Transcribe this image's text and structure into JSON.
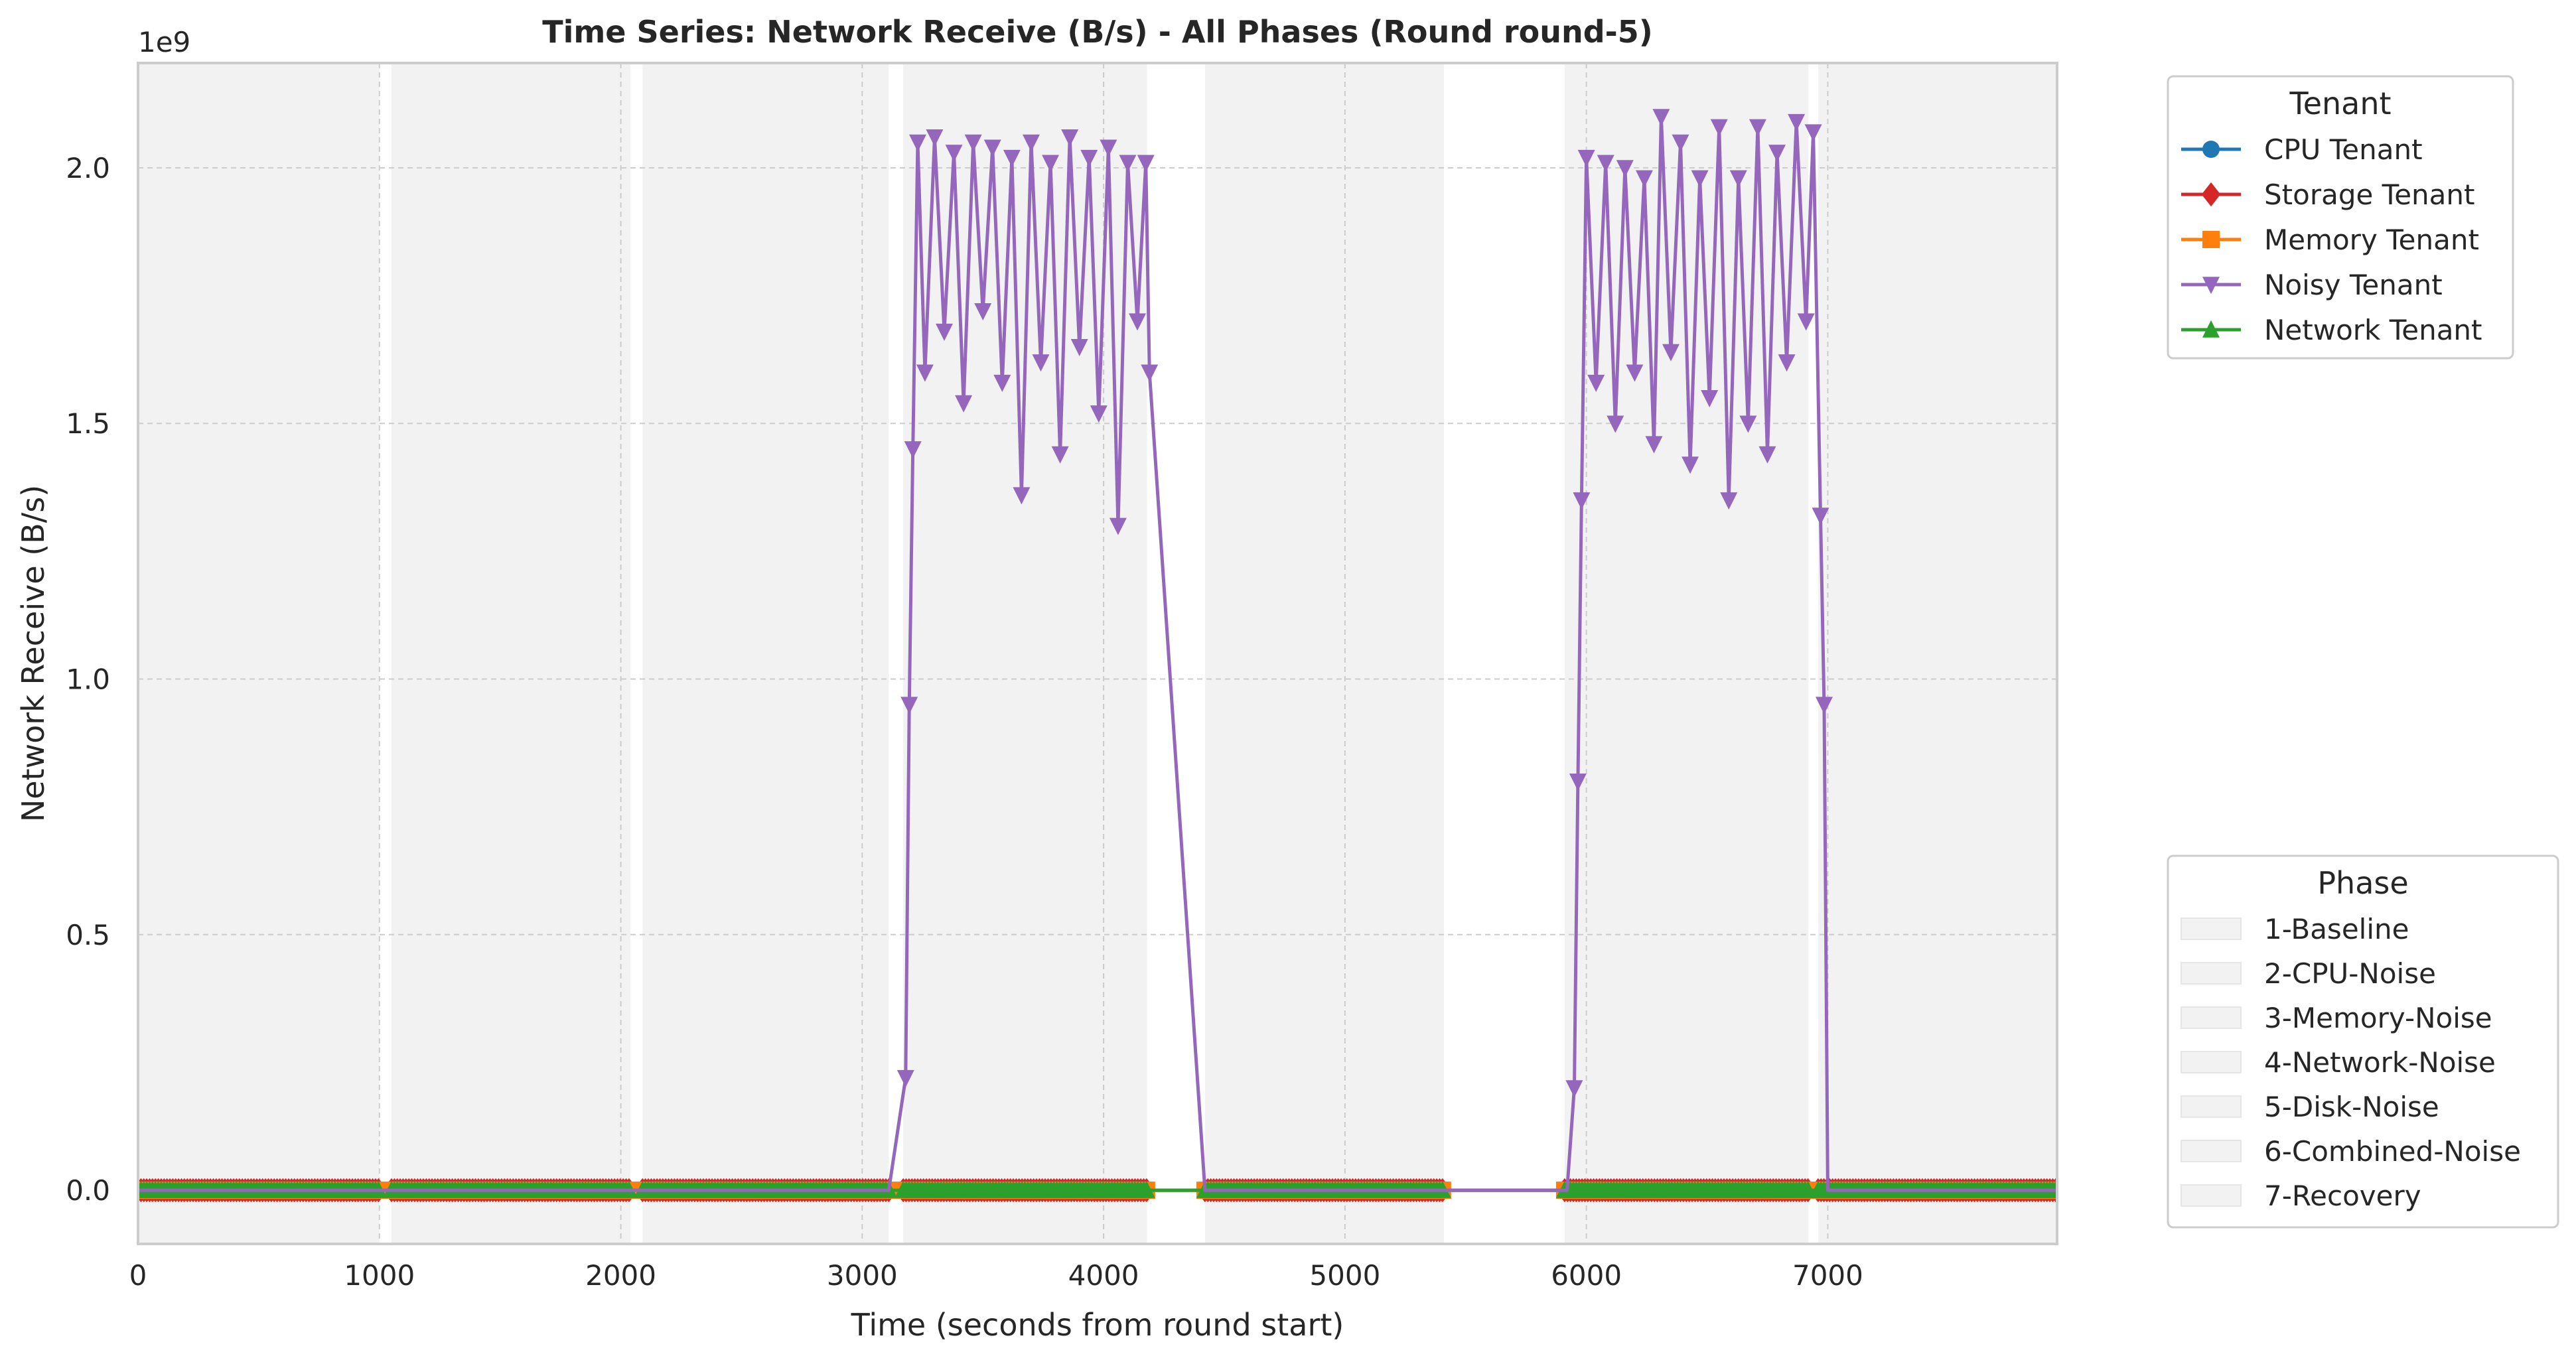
{
  "chart_data": {
    "type": "line",
    "title": "Time Series: Network Receive (B/s) - All Phases (Round round-5)",
    "xlabel": "Time (seconds from round start)",
    "ylabel": "Network Receive (B/s)",
    "y_scale_label": "1e9",
    "xlim": [
      0,
      7950
    ],
    "ylim": [
      -0.105,
      2.205
    ],
    "x_ticks": [
      0,
      1000,
      2000,
      3000,
      4000,
      5000,
      6000,
      7000
    ],
    "x_tick_labels": [
      "0",
      "1000",
      "2000",
      "3000",
      "4000",
      "5000",
      "6000",
      "7000"
    ],
    "y_ticks": [
      0.0,
      0.5,
      1.0,
      1.5,
      2.0
    ],
    "y_tick_labels": [
      "0.0",
      "0.5",
      "1.0",
      "1.5",
      "2.0"
    ],
    "grid": true,
    "phases": [
      {
        "name": "1-Baseline",
        "start": 0,
        "end": 1000
      },
      {
        "name": "2-CPU-Noise",
        "start": 1050,
        "end": 2040
      },
      {
        "name": "3-Memory-Noise",
        "start": 2090,
        "end": 3110
      },
      {
        "name": "4-Network-Noise",
        "start": 3170,
        "end": 4180
      },
      {
        "name": "5-Disk-Noise",
        "start": 4420,
        "end": 5410
      },
      {
        "name": "6-Combined-Noise",
        "start": 5910,
        "end": 6920
      },
      {
        "name": "7-Recovery",
        "start": 6960,
        "end": 7950
      }
    ],
    "tenant_legend_title": "Tenant",
    "phase_legend_title": "Phase",
    "legend_position": "right (outside plot)",
    "series": [
      {
        "name": "CPU Tenant",
        "color": "#1f77b4",
        "marker": "circle",
        "points": "~0 B/s during every phase, 0 between phases"
      },
      {
        "name": "Storage Tenant",
        "color": "#d62728",
        "marker": "diamond",
        "points": "~0 B/s during every phase, 0 between phases"
      },
      {
        "name": "Memory Tenant",
        "color": "#ff7f0e",
        "marker": "square",
        "points": "~0 B/s during every phase, 0 between phases"
      },
      {
        "name": "Noisy Tenant",
        "color": "#9467bd",
        "marker": "triangle-down",
        "points": [
          [
            3110,
            0.0
          ],
          [
            3180,
            0.22
          ],
          [
            3195,
            0.95
          ],
          [
            3210,
            1.45
          ],
          [
            3230,
            2.05
          ],
          [
            3260,
            1.6
          ],
          [
            3300,
            2.06
          ],
          [
            3340,
            1.68
          ],
          [
            3380,
            2.03
          ],
          [
            3420,
            1.54
          ],
          [
            3460,
            2.05
          ],
          [
            3500,
            1.72
          ],
          [
            3540,
            2.04
          ],
          [
            3580,
            1.58
          ],
          [
            3620,
            2.02
          ],
          [
            3660,
            1.36
          ],
          [
            3700,
            2.05
          ],
          [
            3740,
            1.62
          ],
          [
            3780,
            2.01
          ],
          [
            3820,
            1.44
          ],
          [
            3860,
            2.06
          ],
          [
            3900,
            1.65
          ],
          [
            3940,
            2.02
          ],
          [
            3980,
            1.52
          ],
          [
            4020,
            2.04
          ],
          [
            4060,
            1.3
          ],
          [
            4100,
            2.01
          ],
          [
            4140,
            1.7
          ],
          [
            4175,
            2.01
          ],
          [
            4190,
            1.6
          ],
          [
            4420,
            0.0
          ],
          [
            5410,
            0.0
          ],
          [
            5920,
            0.0
          ],
          [
            5950,
            0.2
          ],
          [
            5965,
            0.8
          ],
          [
            5980,
            1.35
          ],
          [
            6000,
            2.02
          ],
          [
            6040,
            1.58
          ],
          [
            6080,
            2.01
          ],
          [
            6120,
            1.5
          ],
          [
            6160,
            2.0
          ],
          [
            6200,
            1.6
          ],
          [
            6240,
            1.98
          ],
          [
            6280,
            1.46
          ],
          [
            6310,
            2.1
          ],
          [
            6350,
            1.64
          ],
          [
            6390,
            2.05
          ],
          [
            6430,
            1.42
          ],
          [
            6470,
            1.98
          ],
          [
            6510,
            1.55
          ],
          [
            6550,
            2.08
          ],
          [
            6590,
            1.35
          ],
          [
            6630,
            1.98
          ],
          [
            6670,
            1.5
          ],
          [
            6710,
            2.08
          ],
          [
            6750,
            1.44
          ],
          [
            6790,
            2.03
          ],
          [
            6830,
            1.62
          ],
          [
            6870,
            2.09
          ],
          [
            6910,
            1.7
          ],
          [
            6940,
            2.07
          ],
          [
            6970,
            1.32
          ],
          [
            6985,
            0.95
          ],
          [
            7000,
            0.0
          ],
          [
            7950,
            0.0
          ]
        ]
      },
      {
        "name": "Network Tenant",
        "color": "#2ca02c",
        "marker": "triangle-up",
        "points": "~0 B/s during every phase, 0 between phases"
      }
    ]
  }
}
